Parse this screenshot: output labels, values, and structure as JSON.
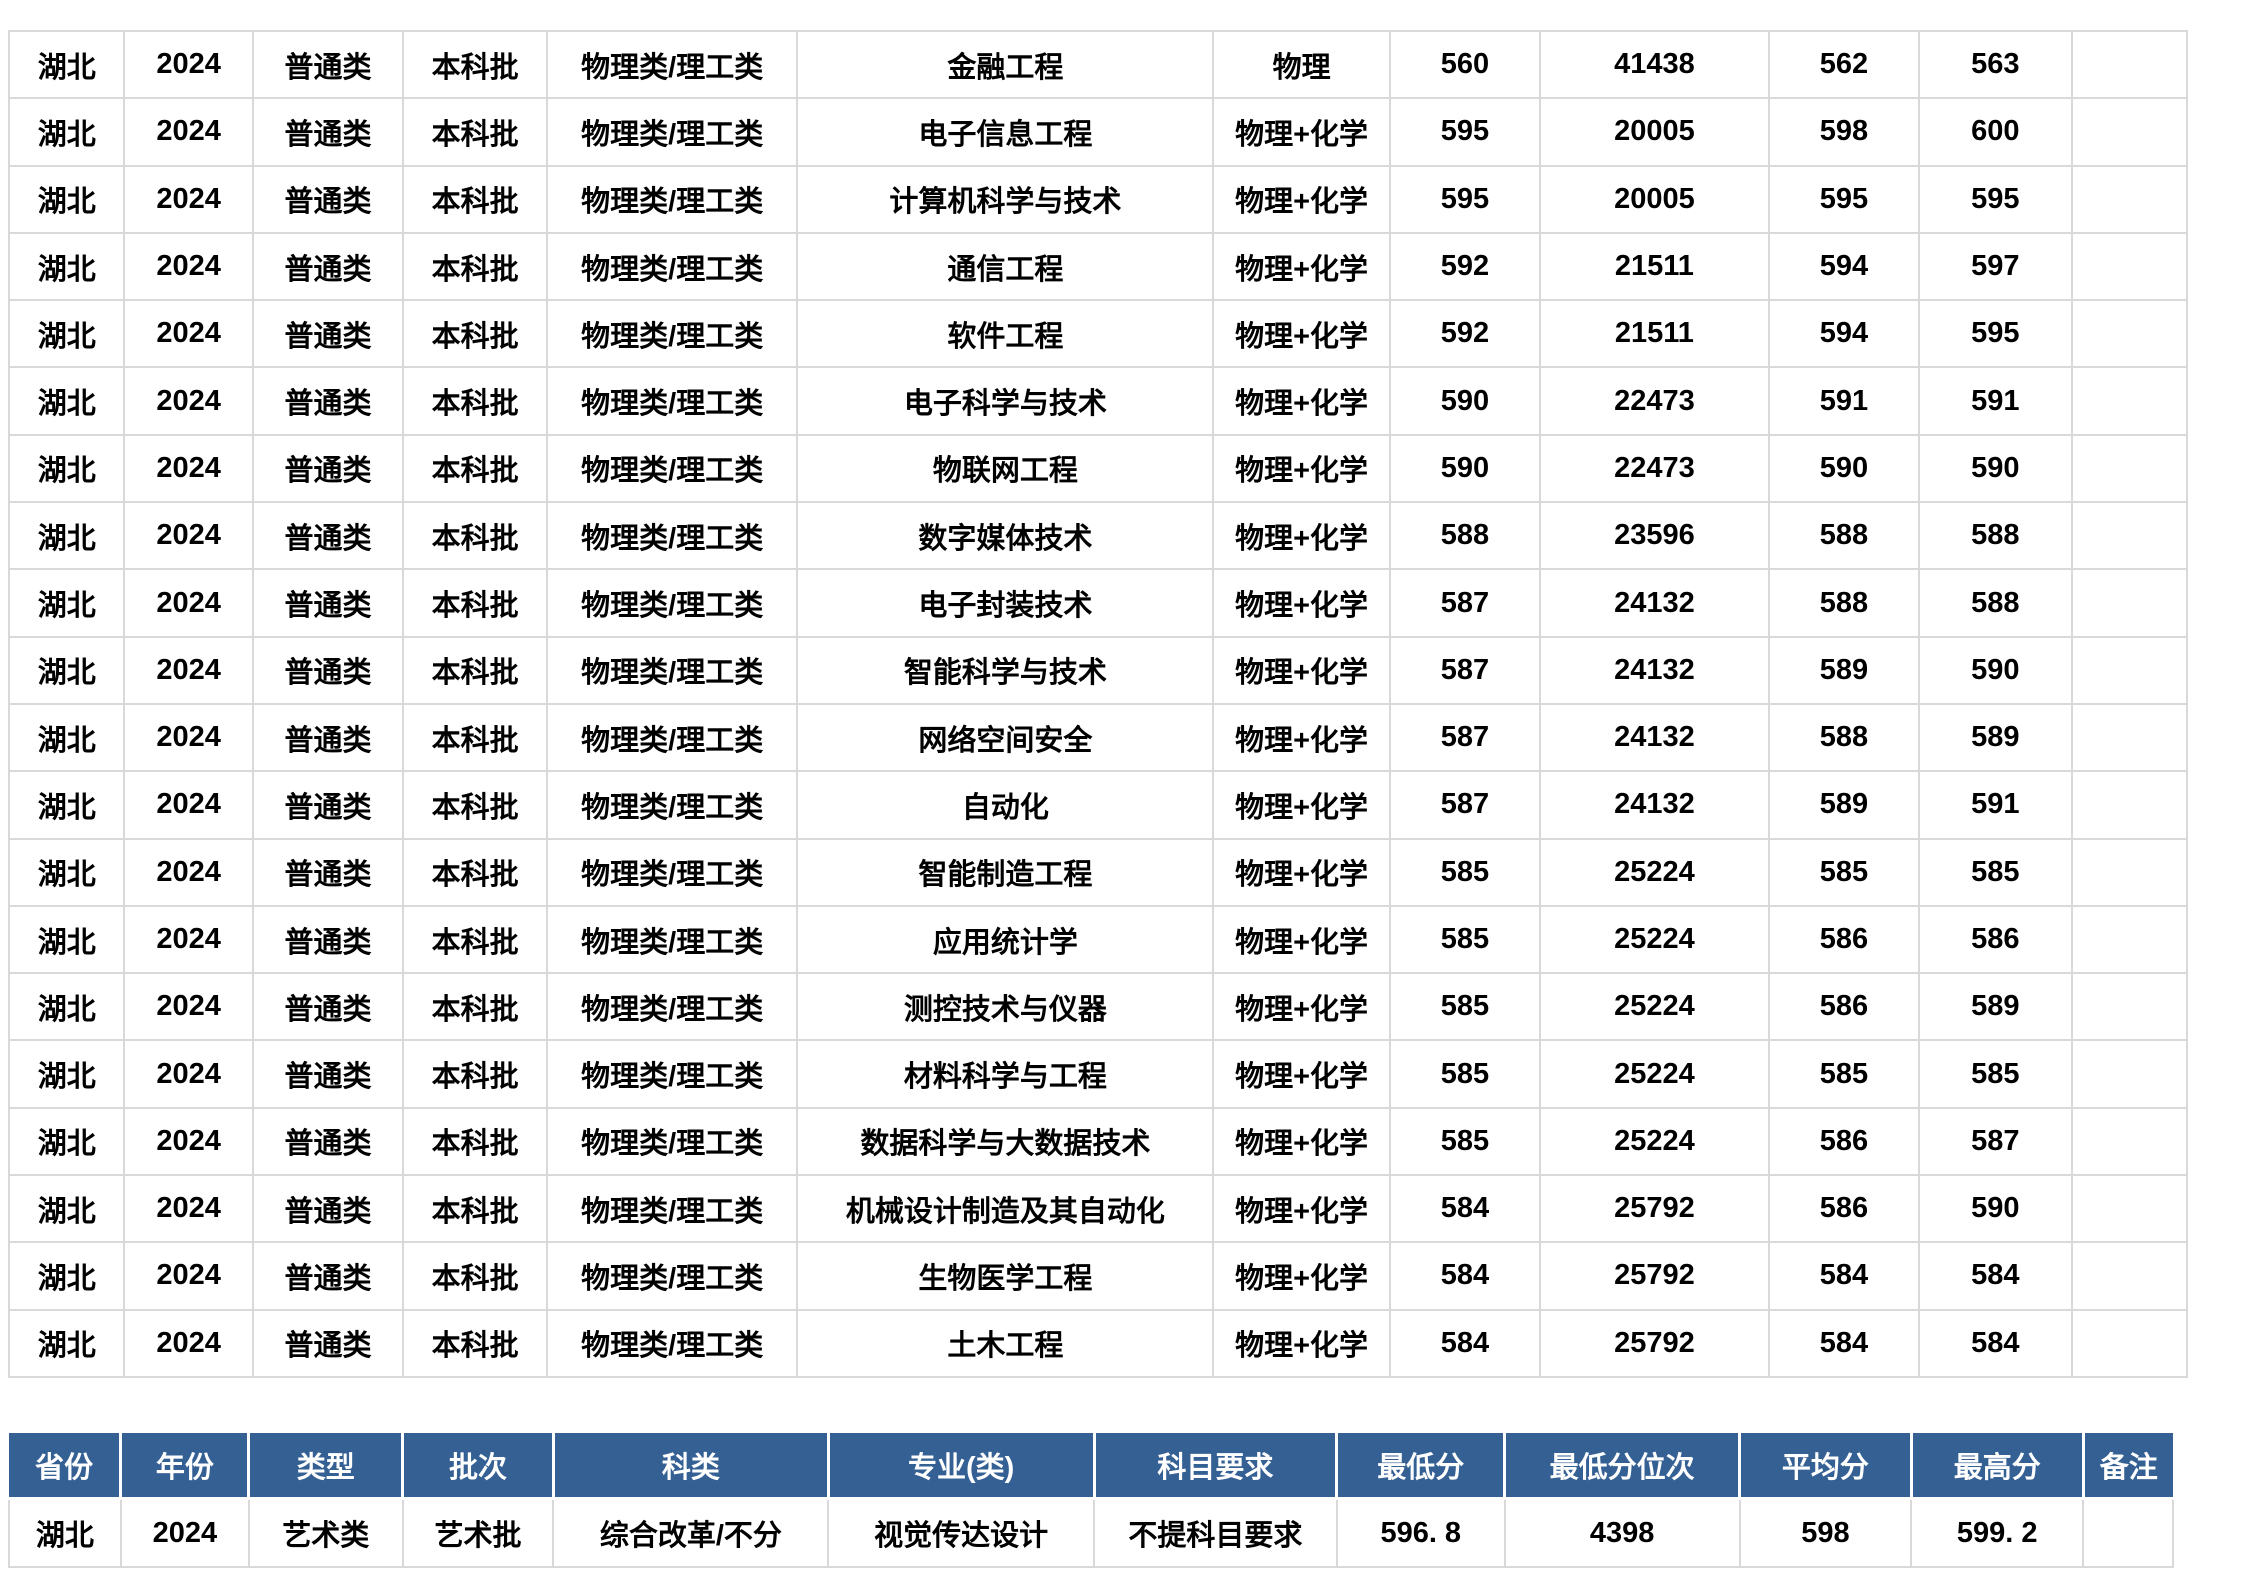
{
  "colors": {
    "header_bg": "#346094",
    "header_text": "#ffffff",
    "grid_line": "#d9d9d9",
    "cell_text": "#000000"
  },
  "top_table": {
    "rows": [
      {
        "province": "湖北",
        "year": "2024",
        "type": "普通类",
        "batch": "本科批",
        "category": "物理类/理工类",
        "major": "金融工程",
        "subject_requirement": "物理",
        "min_score": "560",
        "min_score_rank": "41438",
        "avg_score": "562",
        "max_score": "563",
        "remark": ""
      },
      {
        "province": "湖北",
        "year": "2024",
        "type": "普通类",
        "batch": "本科批",
        "category": "物理类/理工类",
        "major": "电子信息工程",
        "subject_requirement": "物理+化学",
        "min_score": "595",
        "min_score_rank": "20005",
        "avg_score": "598",
        "max_score": "600",
        "remark": ""
      },
      {
        "province": "湖北",
        "year": "2024",
        "type": "普通类",
        "batch": "本科批",
        "category": "物理类/理工类",
        "major": "计算机科学与技术",
        "subject_requirement": "物理+化学",
        "min_score": "595",
        "min_score_rank": "20005",
        "avg_score": "595",
        "max_score": "595",
        "remark": ""
      },
      {
        "province": "湖北",
        "year": "2024",
        "type": "普通类",
        "batch": "本科批",
        "category": "物理类/理工类",
        "major": "通信工程",
        "subject_requirement": "物理+化学",
        "min_score": "592",
        "min_score_rank": "21511",
        "avg_score": "594",
        "max_score": "597",
        "remark": ""
      },
      {
        "province": "湖北",
        "year": "2024",
        "type": "普通类",
        "batch": "本科批",
        "category": "物理类/理工类",
        "major": "软件工程",
        "subject_requirement": "物理+化学",
        "min_score": "592",
        "min_score_rank": "21511",
        "avg_score": "594",
        "max_score": "595",
        "remark": ""
      },
      {
        "province": "湖北",
        "year": "2024",
        "type": "普通类",
        "batch": "本科批",
        "category": "物理类/理工类",
        "major": "电子科学与技术",
        "subject_requirement": "物理+化学",
        "min_score": "590",
        "min_score_rank": "22473",
        "avg_score": "591",
        "max_score": "591",
        "remark": ""
      },
      {
        "province": "湖北",
        "year": "2024",
        "type": "普通类",
        "batch": "本科批",
        "category": "物理类/理工类",
        "major": "物联网工程",
        "subject_requirement": "物理+化学",
        "min_score": "590",
        "min_score_rank": "22473",
        "avg_score": "590",
        "max_score": "590",
        "remark": ""
      },
      {
        "province": "湖北",
        "year": "2024",
        "type": "普通类",
        "batch": "本科批",
        "category": "物理类/理工类",
        "major": "数字媒体技术",
        "subject_requirement": "物理+化学",
        "min_score": "588",
        "min_score_rank": "23596",
        "avg_score": "588",
        "max_score": "588",
        "remark": ""
      },
      {
        "province": "湖北",
        "year": "2024",
        "type": "普通类",
        "batch": "本科批",
        "category": "物理类/理工类",
        "major": "电子封装技术",
        "subject_requirement": "物理+化学",
        "min_score": "587",
        "min_score_rank": "24132",
        "avg_score": "588",
        "max_score": "588",
        "remark": ""
      },
      {
        "province": "湖北",
        "year": "2024",
        "type": "普通类",
        "batch": "本科批",
        "category": "物理类/理工类",
        "major": "智能科学与技术",
        "subject_requirement": "物理+化学",
        "min_score": "587",
        "min_score_rank": "24132",
        "avg_score": "589",
        "max_score": "590",
        "remark": ""
      },
      {
        "province": "湖北",
        "year": "2024",
        "type": "普通类",
        "batch": "本科批",
        "category": "物理类/理工类",
        "major": "网络空间安全",
        "subject_requirement": "物理+化学",
        "min_score": "587",
        "min_score_rank": "24132",
        "avg_score": "588",
        "max_score": "589",
        "remark": ""
      },
      {
        "province": "湖北",
        "year": "2024",
        "type": "普通类",
        "batch": "本科批",
        "category": "物理类/理工类",
        "major": "自动化",
        "subject_requirement": "物理+化学",
        "min_score": "587",
        "min_score_rank": "24132",
        "avg_score": "589",
        "max_score": "591",
        "remark": ""
      },
      {
        "province": "湖北",
        "year": "2024",
        "type": "普通类",
        "batch": "本科批",
        "category": "物理类/理工类",
        "major": "智能制造工程",
        "subject_requirement": "物理+化学",
        "min_score": "585",
        "min_score_rank": "25224",
        "avg_score": "585",
        "max_score": "585",
        "remark": ""
      },
      {
        "province": "湖北",
        "year": "2024",
        "type": "普通类",
        "batch": "本科批",
        "category": "物理类/理工类",
        "major": "应用统计学",
        "subject_requirement": "物理+化学",
        "min_score": "585",
        "min_score_rank": "25224",
        "avg_score": "586",
        "max_score": "586",
        "remark": ""
      },
      {
        "province": "湖北",
        "year": "2024",
        "type": "普通类",
        "batch": "本科批",
        "category": "物理类/理工类",
        "major": "测控技术与仪器",
        "subject_requirement": "物理+化学",
        "min_score": "585",
        "min_score_rank": "25224",
        "avg_score": "586",
        "max_score": "589",
        "remark": ""
      },
      {
        "province": "湖北",
        "year": "2024",
        "type": "普通类",
        "batch": "本科批",
        "category": "物理类/理工类",
        "major": "材料科学与工程",
        "subject_requirement": "物理+化学",
        "min_score": "585",
        "min_score_rank": "25224",
        "avg_score": "585",
        "max_score": "585",
        "remark": ""
      },
      {
        "province": "湖北",
        "year": "2024",
        "type": "普通类",
        "batch": "本科批",
        "category": "物理类/理工类",
        "major": "数据科学与大数据技术",
        "subject_requirement": "物理+化学",
        "min_score": "585",
        "min_score_rank": "25224",
        "avg_score": "586",
        "max_score": "587",
        "remark": ""
      },
      {
        "province": "湖北",
        "year": "2024",
        "type": "普通类",
        "batch": "本科批",
        "category": "物理类/理工类",
        "major": "机械设计制造及其自动化",
        "subject_requirement": "物理+化学",
        "min_score": "584",
        "min_score_rank": "25792",
        "avg_score": "586",
        "max_score": "590",
        "remark": ""
      },
      {
        "province": "湖北",
        "year": "2024",
        "type": "普通类",
        "batch": "本科批",
        "category": "物理类/理工类",
        "major": "生物医学工程",
        "subject_requirement": "物理+化学",
        "min_score": "584",
        "min_score_rank": "25792",
        "avg_score": "584",
        "max_score": "584",
        "remark": ""
      },
      {
        "province": "湖北",
        "year": "2024",
        "type": "普通类",
        "batch": "本科批",
        "category": "物理类/理工类",
        "major": "土木工程",
        "subject_requirement": "物理+化学",
        "min_score": "584",
        "min_score_rank": "25792",
        "avg_score": "584",
        "max_score": "584",
        "remark": ""
      }
    ]
  },
  "bottom_table": {
    "headers": [
      "省份",
      "年份",
      "类型",
      "批次",
      "科类",
      "专业(类)",
      "科目要求",
      "最低分",
      "最低分位次",
      "平均分",
      "最高分",
      "备注"
    ],
    "rows": [
      {
        "province": "湖北",
        "year": "2024",
        "type": "艺术类",
        "batch": "艺术批",
        "category": "综合改革/不分",
        "major": "视觉传达设计",
        "subject_requirement": "不提科目要求",
        "min_score": "596. 8",
        "min_score_rank": "4398",
        "avg_score": "598",
        "max_score": "599. 2",
        "remark": ""
      }
    ]
  }
}
